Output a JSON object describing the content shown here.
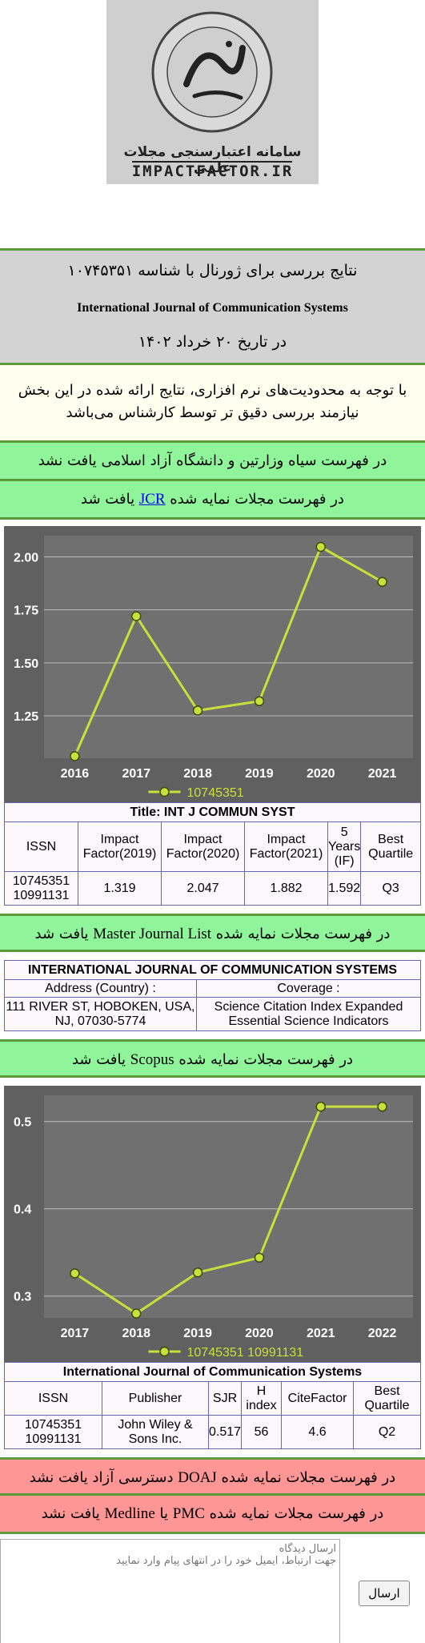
{
  "logo": {
    "stamp_text": "IMPACTFACTOR.IR",
    "brand_fa": "سامانه اعتبارسنجی مجلات علمی",
    "brand_en": "IMPACTFACTOR.IR"
  },
  "report": {
    "line1": "نتایج بررسی برای ژورنال با شناسه ۱۰۷۴۵۳۵۱",
    "journal_name": "International Journal of Communication Systems",
    "line3": "در تاریخ ۲۰ خرداد ۱۴۰۲"
  },
  "notice": "با توجه به محدودیت‌های نرم افزاری، نتایج ارائه شده در این بخش نیازمند بررسی دقیق تر توسط کارشناس می‌باشد",
  "banners": {
    "blacklist": "در فهرست سیاه وزارتین و دانشگاه آزاد اسلامی یافت نشد",
    "jcr_pre": "در فهرست مجلات نمایه شده",
    "jcr_link": "JCR",
    "jcr_post": "یافت شد",
    "mjl_pre": "در فهرست مجلات نمایه شده",
    "mjl_en": "Master Journal List",
    "mjl_post": "یافت شد",
    "scopus_pre": "در فهرست مجلات نمایه شده",
    "scopus_en": "Scopus",
    "scopus_post": "یافت شد",
    "doaj_pre": "در فهرست مجلات نمایه شده",
    "doaj_en": "DOAJ",
    "doaj_post": "دسترسی آزاد یافت نشد",
    "pmc_pre": "در فهرست مجلات نمایه شده",
    "pmc_en": "PMC",
    "pmc_mid": "یا",
    "pmc_en2": "Medline",
    "pmc_post": "یافت نشد"
  },
  "chart_data": [
    {
      "type": "line",
      "x": [
        "2016",
        "2017",
        "2018",
        "2019",
        "2020",
        "2021"
      ],
      "series": [
        {
          "name": "10745351",
          "values": [
            1.06,
            1.72,
            1.275,
            1.319,
            2.047,
            1.882
          ]
        }
      ],
      "yticks": [
        "1.25",
        "1.50",
        "1.75",
        "2.00"
      ],
      "ylim": [
        1.05,
        2.1
      ],
      "grid": true,
      "legend": "bottom",
      "colors": {
        "line": "#c8e03a",
        "bg": "#606060",
        "plot": "#707070"
      }
    },
    {
      "type": "line",
      "x": [
        "2017",
        "2018",
        "2019",
        "2020",
        "2021",
        "2022"
      ],
      "series": [
        {
          "name": "10745351 10991131",
          "values": [
            0.326,
            0.28,
            0.327,
            0.344,
            0.517,
            0.517
          ]
        }
      ],
      "yticks": [
        "0.3",
        "0.4",
        "0.5"
      ],
      "ylim": [
        0.275,
        0.53
      ],
      "grid": true,
      "legend": "bottom",
      "colors": {
        "line": "#c8e03a",
        "bg": "#606060",
        "plot": "#707070"
      }
    }
  ],
  "jcr_table": {
    "title": "Title: INT J COMMUN SYST",
    "headers": [
      "ISSN",
      "Impact Factor(2019)",
      "Impact Factor(2020)",
      "Impact Factor(2021)",
      "5 Years (IF)",
      "Best Quartile"
    ],
    "row": {
      "issn": "10745351 10991131",
      "if2019": "1.319",
      "if2020": "2.047",
      "if2021": "1.882",
      "if5": "1.592",
      "quartile": "Q3"
    }
  },
  "mjl_table": {
    "title": "INTERNATIONAL JOURNAL OF COMMUNICATION SYSTEMS",
    "address_label": "Address (Country) :",
    "coverage_label": "Coverage :",
    "address": "111 RIVER ST, HOBOKEN, USA, NJ, 07030-5774",
    "coverage1": "Science Citation Index Expanded",
    "coverage2": "Essential Science Indicators"
  },
  "scopus_table": {
    "title": "International Journal of Communication Systems",
    "headers": [
      "ISSN",
      "Publisher",
      "SJR",
      "H index",
      "CiteFactor",
      "Best Quartile"
    ],
    "row": {
      "issn": "10745351 10991131",
      "publisher": "John Wiley & Sons Inc.",
      "sjr": "0.517",
      "hindex": "56",
      "citefactor": "4.6",
      "quartile": "Q2"
    }
  },
  "comment": {
    "placeholder": "ارسال دیدگاه\nجهت ارتباط، ایمیل خود را در انتهای پیام وارد نمایید",
    "submit": "ارسال"
  }
}
